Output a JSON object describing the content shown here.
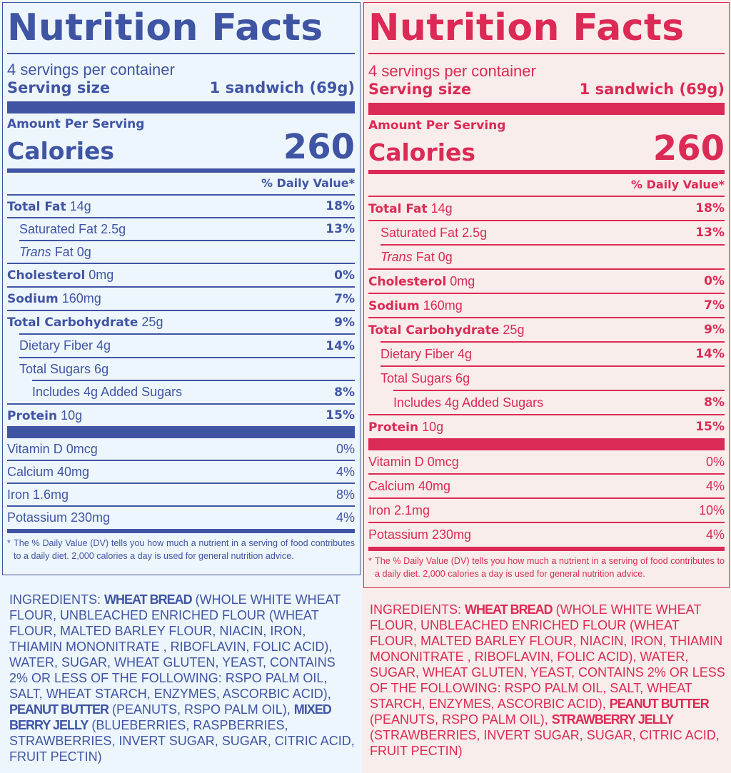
{
  "colors": {
    "left_accent": "#3f55a4",
    "right_accent": "#dc2a56",
    "left_bg": "#eef6fd",
    "right_bg": "#f8edea"
  },
  "labels": [
    {
      "title": "Nutrition Facts",
      "servings_per_container": "4 servings per container",
      "serving_size_label": "Serving size",
      "serving_size_value": "1 sandwich (69g)",
      "amount_per_serving": "Amount Per Serving",
      "calories_label": "Calories",
      "calories_value": "260",
      "dv_header": "% Daily Value*",
      "total_fat": {
        "name": "Total Fat",
        "amount": "14g",
        "dv": "18%"
      },
      "saturated_fat": {
        "name": "Saturated Fat 2.5g",
        "dv": "13%"
      },
      "trans_fat": {
        "italic": "Trans",
        "rest": " Fat 0g"
      },
      "cholesterol": {
        "name": "Cholesterol",
        "amount": "0mg",
        "dv": "0%"
      },
      "sodium": {
        "name": "Sodium",
        "amount": "160mg",
        "dv": "7%"
      },
      "total_carbohydrate": {
        "name": "Total Carbohydrate",
        "amount": "25g",
        "dv": "9%"
      },
      "dietary_fiber": {
        "name": "Dietary Fiber 4g",
        "dv": "14%"
      },
      "total_sugars": {
        "name": "Total Sugars 6g"
      },
      "added_sugars": {
        "name": "Includes 4g Added Sugars",
        "dv": "8%"
      },
      "protein": {
        "name": "Protein",
        "amount": "10g",
        "dv": "15%"
      },
      "vitamins": [
        {
          "name": "Vitamin D 0mcg",
          "dv": "0%"
        },
        {
          "name": "Calcium 40mg",
          "dv": "4%"
        },
        {
          "name": "Iron 1.6mg",
          "dv": "8%"
        },
        {
          "name": "Potassium 230mg",
          "dv": "4%"
        }
      ],
      "footnote_mark": "*",
      "footnote": "The % Daily Value (DV) tells you how much a nutrient in a serving of food contributes to a daily diet. 2,000 calories a day is used for general nutrition advice.",
      "ingredients": {
        "prefix": "INGREDIENTS: ",
        "part1_bold": "WHEAT BREAD",
        "part1_text": " (WHOLE WHITE WHEAT FLOUR, UNBLEACHED ENRICHED FLOUR (WHEAT FLOUR, MALTED BARLEY FLOUR, NIACIN, IRON, THIAMIN MONONITRATE , RIBOFLAVIN, FOLIC ACID), WATER, SUGAR, WHEAT GLUTEN, YEAST, CONTAINS 2% OR LESS OF THE FOLLOWING: RSPO PALM OIL, SALT, WHEAT STARCH, ENZYMES, ASCORBIC ACID), ",
        "part2_bold": "PEANUT BUTTER",
        "part2_text": " (PEANUTS, RSPO PALM OIL), ",
        "part3_bold": "MIXED BERRY JELLY",
        "part3_text": " (BLUEBERRIES, RASPBERRIES, STRAWBERRIES, INVERT SUGAR, SUGAR, CITRIC ACID, FRUIT PECTIN)"
      }
    },
    {
      "title": "Nutrition Facts",
      "servings_per_container": "4 servings per container",
      "serving_size_label": "Serving size",
      "serving_size_value": "1 sandwich (69g)",
      "amount_per_serving": "Amount Per Serving",
      "calories_label": "Calories",
      "calories_value": "260",
      "dv_header": "% Daily Value*",
      "total_fat": {
        "name": "Total Fat",
        "amount": "14g",
        "dv": "18%"
      },
      "saturated_fat": {
        "name": "Saturated Fat 2.5g",
        "dv": "13%"
      },
      "trans_fat": {
        "italic": "Trans",
        "rest": " Fat 0g"
      },
      "cholesterol": {
        "name": "Cholesterol",
        "amount": "0mg",
        "dv": "0%"
      },
      "sodium": {
        "name": "Sodium",
        "amount": "160mg",
        "dv": "7%"
      },
      "total_carbohydrate": {
        "name": "Total Carbohydrate",
        "amount": "25g",
        "dv": "9%"
      },
      "dietary_fiber": {
        "name": "Dietary Fiber 4g",
        "dv": "14%"
      },
      "total_sugars": {
        "name": "Total Sugars 6g"
      },
      "added_sugars": {
        "name": "Includes 4g Added Sugars",
        "dv": "8%"
      },
      "protein": {
        "name": "Protein",
        "amount": "10g",
        "dv": "15%"
      },
      "vitamins": [
        {
          "name": "Vitamin D 0mcg",
          "dv": "0%"
        },
        {
          "name": "Calcium 40mg",
          "dv": "4%"
        },
        {
          "name": "Iron 2.1mg",
          "dv": "10%"
        },
        {
          "name": "Potassium 230mg",
          "dv": "4%"
        }
      ],
      "footnote_mark": "*",
      "footnote": "The % Daily Value (DV) tells you how much a nutrient in a serving of food contributes to a daily diet. 2,000 calories a day is used for general nutrition advice.",
      "ingredients": {
        "prefix": "INGREDIENTS: ",
        "part1_bold": "WHEAT BREAD",
        "part1_text": " (WHOLE WHITE WHEAT FLOUR, UNBLEACHED ENRICHED FLOUR (WHEAT FLOUR, MALTED BARLEY FLOUR, NIACIN, IRON, THIAMIN MONONITRATE , RIBOFLAVIN, FOLIC ACID), WATER, SUGAR, WHEAT GLUTEN, YEAST, CONTAINS 2% OR LESS OF THE FOLLOWING: RSPO PALM OIL, SALT, WHEAT STARCH, ENZYMES, ASCORBIC ACID), ",
        "part2_bold": "PEANUT BUTTER",
        "part2_text": " (PEANUTS, RSPO PALM OIL), ",
        "part3_bold": "STRAWBERRY JELLY",
        "part3_text": " (STRAWBERRIES, INVERT SUGAR, SUGAR, CITRIC ACID, FRUIT PECTIN)"
      }
    }
  ]
}
